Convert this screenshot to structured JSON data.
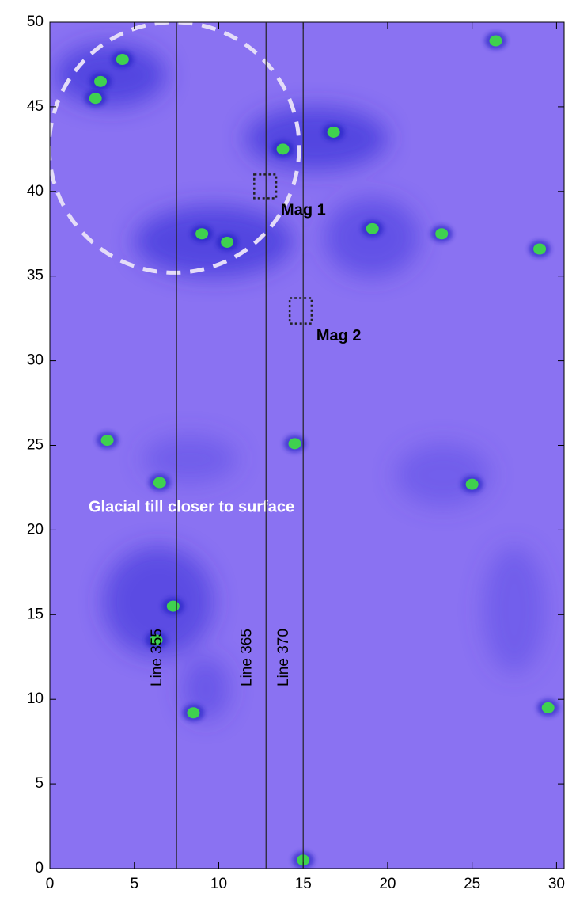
{
  "chart_data": {
    "type": "scatter",
    "x": [
      3.0,
      4.3,
      2.7,
      9.0,
      10.5,
      13.8,
      16.8,
      19.1,
      26.4,
      29.0,
      25.0,
      6.3,
      7.3,
      8.5,
      29.5,
      15.0,
      6.5,
      3.4,
      14.5,
      23.2
    ],
    "values": [
      46.5,
      47.8,
      45.5,
      37.5,
      37.0,
      42.5,
      43.5,
      37.8,
      48.9,
      36.6,
      22.7,
      13.5,
      15.5,
      9.2,
      9.5,
      0.5,
      22.8,
      25.3,
      25.1,
      37.5
    ],
    "color": "#3fd14f",
    "xlim": [
      0,
      30.45
    ],
    "ylim": [
      0,
      50
    ],
    "xticks": [
      0,
      5,
      10,
      15,
      20,
      25,
      30
    ],
    "yticks": [
      0,
      5,
      10,
      15,
      20,
      25,
      30,
      35,
      40,
      45,
      50
    ],
    "survey_lines": [
      {
        "label": "Line 355",
        "x": 7.5
      },
      {
        "label": "Line 365",
        "x": 12.8
      },
      {
        "label": "Line 370",
        "x": 15.0
      }
    ],
    "circle": {
      "x": 7.36,
      "y": 42.6,
      "r": 7.4
    },
    "targets": [
      {
        "label": "Mag 1",
        "x": [
          12.1,
          13.4
        ],
        "y": [
          39.6,
          41.0
        ]
      },
      {
        "label": "Mag 2",
        "x": [
          14.2,
          15.5
        ],
        "y": [
          32.2,
          33.7
        ]
      }
    ],
    "annotation": "Glacial till closer to surface"
  }
}
